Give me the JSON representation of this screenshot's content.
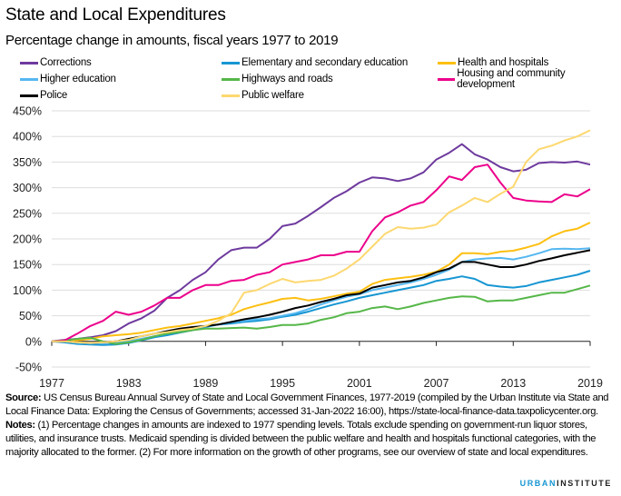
{
  "header": {
    "title": "State and Local Expenditures",
    "subtitle": "Percentage change in amounts, fiscal years 1977 to 2019"
  },
  "footer": {
    "source_label": "Source:",
    "source_text": " US Census Bureau Annual Survey of State and Local Government Finances, 1977-2019 (compiled by the Urban Institute via State and Local Finance Data: Exploring the Census of Governments; accessed 31-Jan-2022 16:00), https://state-local-finance-data.taxpolicycenter.org.",
    "notes_label": "Notes:",
    "notes_text": " (1) Percentage changes in amounts are indexed to 1977 spending levels. Totals exclude spending on government-run liquor stores, utilities, and insurance trusts. Medicaid spending is divided between the public welfare and health and hospitals functional categories, with the majority allocated to the former. (2) For more information on the growth of other programs, see our overview of state and local expenditures.",
    "logo_part1": "URBAN",
    "logo_part2": "INSTITUTE"
  },
  "chart_data": {
    "type": "line",
    "title": "State and Local Expenditures",
    "subtitle": "Percentage change in amounts, fiscal years 1977 to 2019",
    "xlabel": "",
    "ylabel": "",
    "x": [
      1977,
      1978,
      1979,
      1980,
      1981,
      1982,
      1983,
      1984,
      1985,
      1986,
      1987,
      1988,
      1989,
      1990,
      1991,
      1992,
      1993,
      1994,
      1995,
      1996,
      1997,
      1998,
      1999,
      2000,
      2001,
      2002,
      2003,
      2004,
      2005,
      2006,
      2007,
      2008,
      2009,
      2010,
      2011,
      2012,
      2013,
      2014,
      2015,
      2016,
      2017,
      2018,
      2019
    ],
    "xlim": [
      1977,
      2019
    ],
    "ylim": [
      -50,
      450
    ],
    "x_ticks": [
      "1977",
      "1983",
      "1989",
      "1995",
      "2001",
      "2007",
      "2013",
      "2019"
    ],
    "y_ticks": [
      "-50%",
      "0%",
      "50%",
      "100%",
      "150%",
      "200%",
      "250%",
      "300%",
      "350%",
      "400%",
      "450%"
    ],
    "y_tick_values": [
      -50,
      0,
      50,
      100,
      150,
      200,
      250,
      300,
      350,
      400,
      450
    ],
    "grid": true,
    "legend_position": "top",
    "series": [
      {
        "name": "Corrections",
        "color": "#6e3a9e",
        "values": [
          0,
          3,
          5,
          8,
          12,
          20,
          35,
          45,
          60,
          85,
          100,
          120,
          135,
          160,
          178,
          183,
          183,
          200,
          225,
          230,
          245,
          262,
          280,
          293,
          310,
          320,
          318,
          313,
          318,
          330,
          355,
          368,
          385,
          365,
          355,
          340,
          332,
          335,
          348,
          350,
          349,
          351,
          345
        ]
      },
      {
        "name": "Elementary and secondary education",
        "color": "#1696d2",
        "values": [
          0,
          -2,
          -5,
          -6,
          -7,
          -6,
          -3,
          2,
          8,
          12,
          17,
          22,
          28,
          33,
          35,
          38,
          40,
          43,
          48,
          52,
          58,
          65,
          72,
          78,
          85,
          90,
          95,
          100,
          105,
          110,
          118,
          122,
          127,
          122,
          110,
          107,
          105,
          108,
          115,
          120,
          125,
          130,
          138
        ]
      },
      {
        "name": "Health and hospitals",
        "color": "#fdbf11",
        "values": [
          0,
          2,
          2,
          5,
          10,
          12,
          14,
          17,
          22,
          27,
          30,
          35,
          40,
          45,
          52,
          63,
          70,
          76,
          83,
          85,
          80,
          83,
          88,
          93,
          97,
          112,
          120,
          123,
          126,
          130,
          136,
          150,
          172,
          172,
          170,
          175,
          177,
          183,
          190,
          205,
          215,
          220,
          232
        ]
      },
      {
        "name": "Higher education",
        "color": "#55b7f0",
        "values": [
          0,
          0,
          -3,
          -4,
          -3,
          -2,
          0,
          5,
          10,
          15,
          20,
          25,
          30,
          33,
          37,
          40,
          43,
          45,
          50,
          55,
          63,
          72,
          80,
          87,
          92,
          100,
          105,
          110,
          115,
          122,
          130,
          140,
          155,
          160,
          162,
          163,
          160,
          165,
          172,
          180,
          181,
          180,
          182
        ]
      },
      {
        "name": "Highways and roads",
        "color": "#55b748",
        "values": [
          0,
          2,
          5,
          7,
          0,
          -5,
          -2,
          3,
          10,
          15,
          18,
          22,
          25,
          25,
          26,
          27,
          25,
          28,
          32,
          32,
          35,
          42,
          47,
          55,
          58,
          65,
          68,
          63,
          68,
          75,
          80,
          85,
          88,
          87,
          78,
          80,
          80,
          85,
          90,
          95,
          95,
          102,
          109
        ]
      },
      {
        "name": "Housing and community development",
        "color": "#ec008b",
        "values": [
          0,
          2,
          15,
          30,
          40,
          58,
          52,
          58,
          70,
          85,
          85,
          100,
          110,
          110,
          118,
          120,
          130,
          135,
          150,
          155,
          160,
          168,
          168,
          175,
          175,
          215,
          242,
          252,
          265,
          272,
          295,
          322,
          315,
          340,
          345,
          310,
          280,
          275,
          273,
          272,
          287,
          283,
          297
        ]
      },
      {
        "name": "Police",
        "color": "#000000",
        "values": [
          0,
          0,
          -2,
          -3,
          -2,
          0,
          5,
          10,
          15,
          20,
          25,
          28,
          30,
          33,
          38,
          43,
          47,
          52,
          58,
          65,
          70,
          77,
          83,
          90,
          93,
          105,
          110,
          115,
          118,
          125,
          135,
          142,
          155,
          155,
          150,
          145,
          145,
          150,
          157,
          162,
          168,
          173,
          178
        ]
      },
      {
        "name": "Public welfare",
        "color": "#fdd870",
        "values": [
          0,
          0,
          -2,
          -3,
          -2,
          0,
          3,
          10,
          15,
          18,
          22,
          25,
          30,
          40,
          55,
          95,
          100,
          112,
          122,
          115,
          118,
          120,
          128,
          142,
          160,
          185,
          210,
          223,
          220,
          222,
          228,
          252,
          265,
          280,
          272,
          288,
          302,
          350,
          375,
          382,
          392,
          400,
          412
        ]
      }
    ]
  }
}
